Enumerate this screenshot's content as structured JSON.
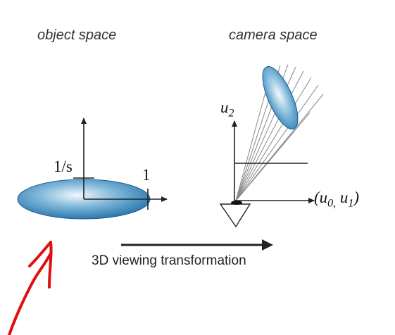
{
  "headings": {
    "object_space": "object space",
    "camera_space": "camera space"
  },
  "object_labels": {
    "inv_s": "1/s",
    "one": "1"
  },
  "camera_labels": {
    "u2": "u",
    "u2_sub": "2",
    "u01_open": "(u",
    "u0_sub": "0,",
    "u01_mid": " u",
    "u1_sub": "1",
    "u01_close": ")"
  },
  "transform_label": "3D viewing transformation",
  "colors": {
    "ellipse_dark": "#1f6fa8",
    "ellipse_light": "#e8f3fa",
    "annotation_red": "#e01010"
  }
}
